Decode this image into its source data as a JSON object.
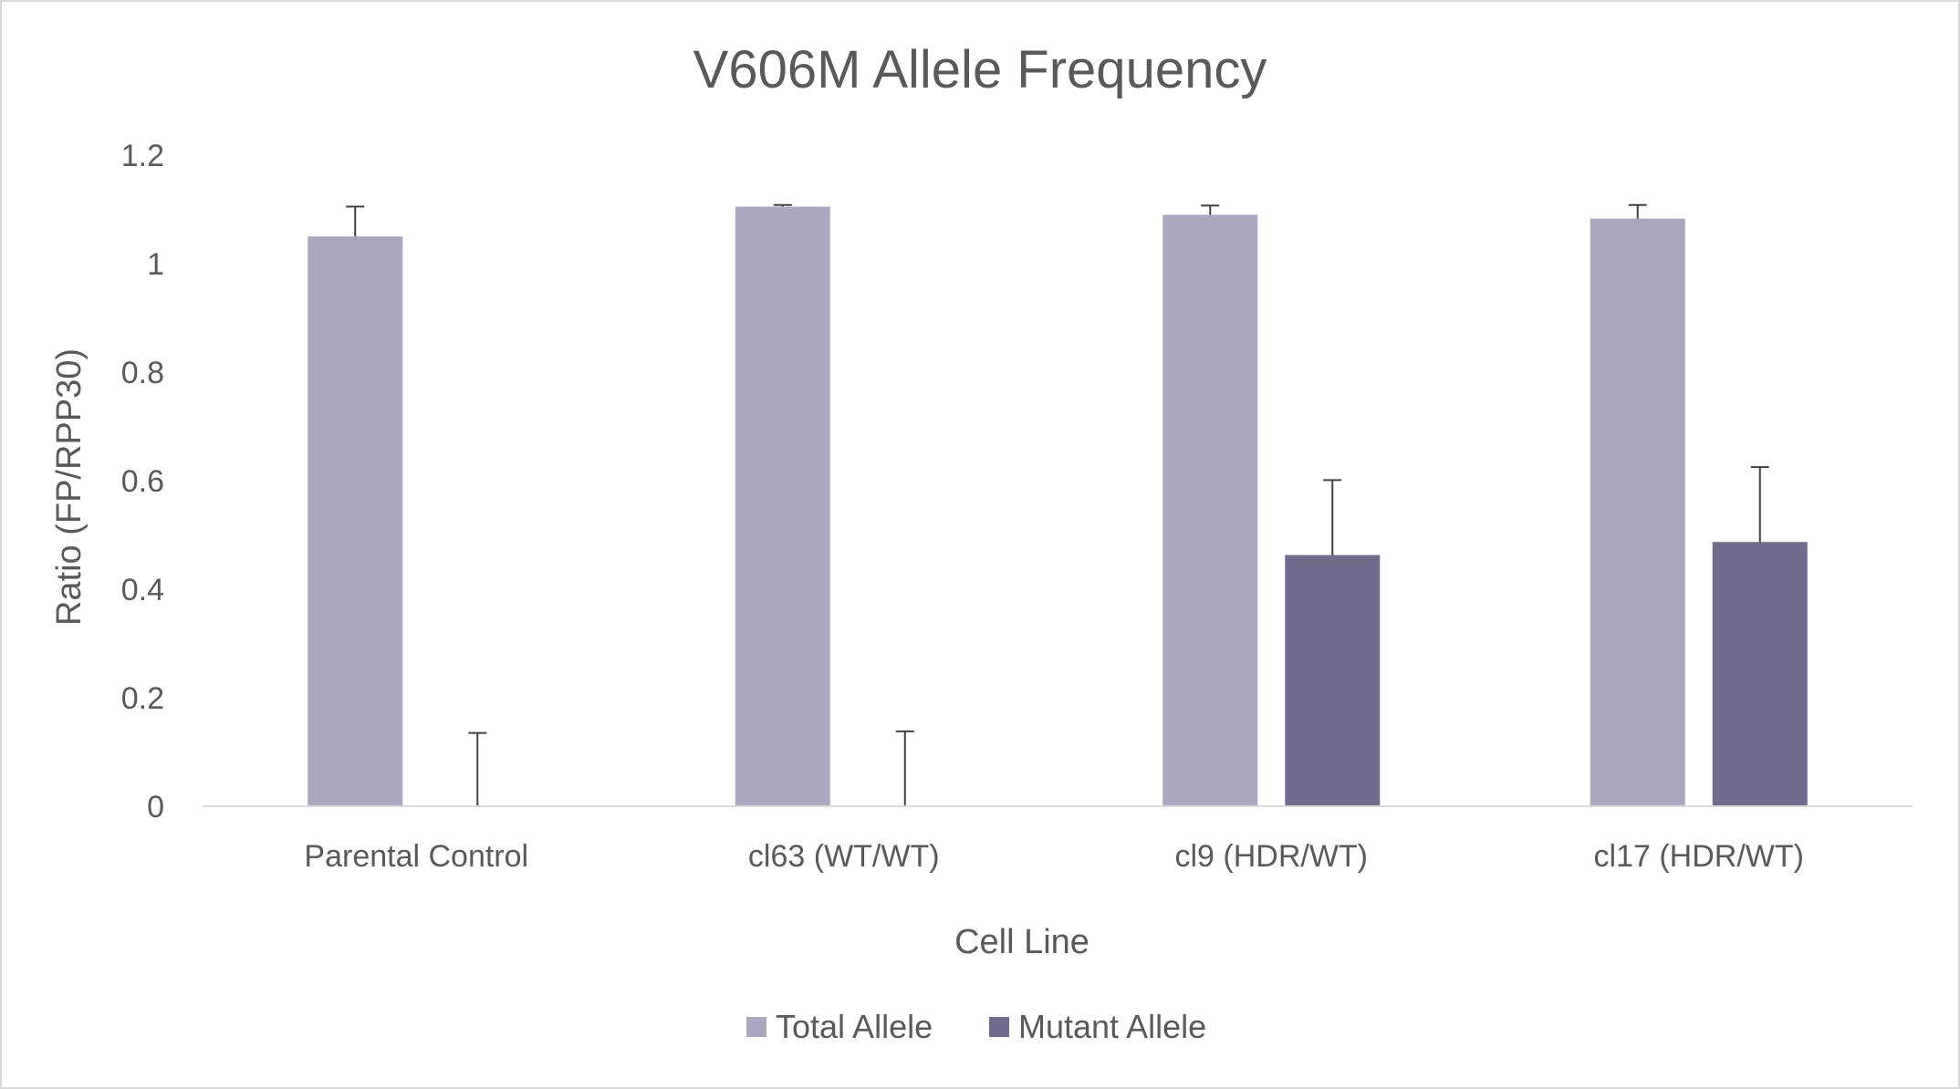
{
  "chart_data": {
    "type": "bar",
    "title": "V606M Allele Frequency",
    "xlabel": "Cell Line",
    "ylabel": "Ratio (FP/RPP30)",
    "categories": [
      "Parental Control",
      "cl63 (WT/WT)",
      "cl9 (HDR/WT)",
      "cl17 (HDR/WT)"
    ],
    "series": [
      {
        "name": "Total Allele",
        "color": "#aba7c0",
        "values": [
          1.05,
          1.105,
          1.09,
          1.083
        ],
        "error": [
          0.055,
          0.003,
          0.017,
          0.025
        ]
      },
      {
        "name": "Mutant Allele",
        "color": "#716b8e",
        "values": [
          0,
          0,
          0.463,
          0.487
        ],
        "error": [
          0.135,
          0.138,
          0.138,
          0.138
        ]
      }
    ],
    "ylim": [
      0,
      1.2
    ],
    "yticks": [
      "0",
      "0.2",
      "0.4",
      "0.6",
      "0.8",
      "1",
      "1.2"
    ],
    "grid": false,
    "legend_position": "bottom"
  }
}
